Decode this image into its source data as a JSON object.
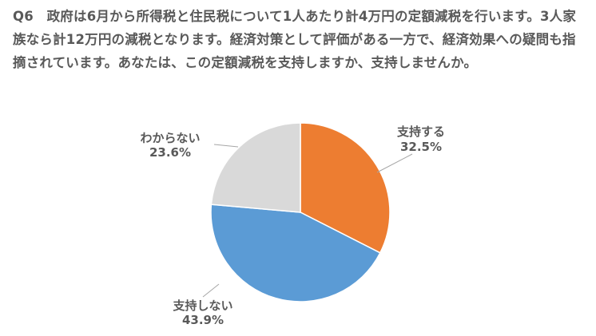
{
  "chart_data": {
    "type": "pie",
    "title": "Q6　政府は6月から所得税と住民税について1人あたり計4万円の定額減税を行います。3人家族なら計12万円の減税となります。経済対策として評価がある一方で、経済効果への疑問も指摘されています。あなたは、この定額減税を支持しますか、支持しませんか。",
    "start_angle_deg": 0,
    "direction": "clockwise",
    "slices": [
      {
        "label": "支持する",
        "value": 32.5,
        "value_label": "32.5%",
        "color": "#ED7D31"
      },
      {
        "label": "支持しない",
        "value": 43.9,
        "value_label": "43.9%",
        "color": "#5B9BD5"
      },
      {
        "label": "わからない",
        "value": 23.6,
        "value_label": "23.6%",
        "color": "#D9D9D9"
      }
    ]
  }
}
